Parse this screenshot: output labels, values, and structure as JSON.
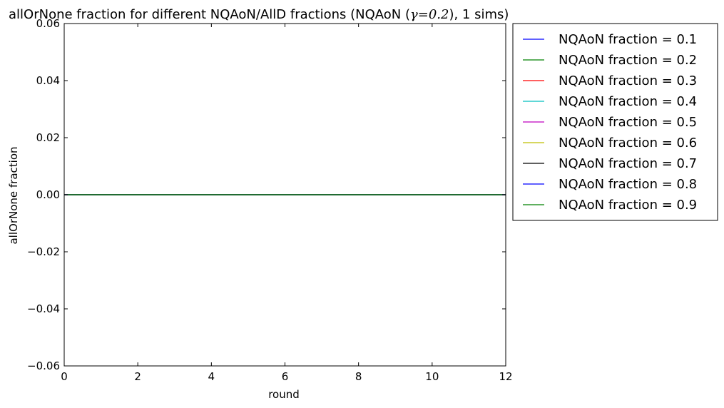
{
  "chart_data": {
    "type": "line",
    "title_prefix": "allOrNone fraction for different NQAoN/AllD fractions (NQAoN (",
    "title_math": "γ=0.2",
    "title_suffix": "), 1 sims)",
    "xlabel": "round",
    "ylabel": "allOrNone fraction",
    "xlim": [
      0,
      12
    ],
    "ylim": [
      -0.06,
      0.06
    ],
    "x_ticks": [
      0,
      2,
      4,
      6,
      8,
      10,
      12
    ],
    "x_tick_labels": [
      "0",
      "2",
      "4",
      "6",
      "8",
      "10",
      "12"
    ],
    "y_ticks": [
      -0.06,
      -0.04,
      -0.02,
      0.0,
      0.02,
      0.04,
      0.06
    ],
    "y_tick_labels": [
      "−0.06",
      "−0.04",
      "−0.02",
      "0.00",
      "0.02",
      "0.04",
      "0.06"
    ],
    "grid": false,
    "legend_position": "outside-right-top",
    "x": [
      0,
      1,
      2,
      3,
      4,
      5,
      6,
      7,
      8,
      9,
      10,
      11,
      12
    ],
    "series": [
      {
        "name": "NQAoN fraction = 0.1",
        "color": "#0000ff",
        "values": [
          0,
          0,
          0,
          0,
          0,
          0,
          0,
          0,
          0,
          0,
          0,
          0,
          0
        ]
      },
      {
        "name": "NQAoN fraction = 0.2",
        "color": "#008000",
        "values": [
          0,
          0,
          0,
          0,
          0,
          0,
          0,
          0,
          0,
          0,
          0,
          0,
          0
        ]
      },
      {
        "name": "NQAoN fraction = 0.3",
        "color": "#ff0000",
        "values": [
          0,
          0,
          0,
          0,
          0,
          0,
          0,
          0,
          0,
          0,
          0,
          0,
          0
        ]
      },
      {
        "name": "NQAoN fraction = 0.4",
        "color": "#00bfbf",
        "values": [
          0,
          0,
          0,
          0,
          0,
          0,
          0,
          0,
          0,
          0,
          0,
          0,
          0
        ]
      },
      {
        "name": "NQAoN fraction = 0.5",
        "color": "#bf00bf",
        "values": [
          0,
          0,
          0,
          0,
          0,
          0,
          0,
          0,
          0,
          0,
          0,
          0,
          0
        ]
      },
      {
        "name": "NQAoN fraction = 0.6",
        "color": "#bfbf00",
        "values": [
          0,
          0,
          0,
          0,
          0,
          0,
          0,
          0,
          0,
          0,
          0,
          0,
          0
        ]
      },
      {
        "name": "NQAoN fraction = 0.7",
        "color": "#000000",
        "values": [
          0,
          0,
          0,
          0,
          0,
          0,
          0,
          0,
          0,
          0,
          0,
          0,
          0
        ]
      },
      {
        "name": "NQAoN fraction = 0.8",
        "color": "#0000ff",
        "values": [
          0,
          0,
          0,
          0,
          0,
          0,
          0,
          0,
          0,
          0,
          0,
          0,
          0
        ]
      },
      {
        "name": "NQAoN fraction = 0.9",
        "color": "#008000",
        "values": [
          0,
          0,
          0,
          0,
          0,
          0,
          0,
          0,
          0,
          0,
          0,
          0,
          0
        ]
      }
    ]
  }
}
